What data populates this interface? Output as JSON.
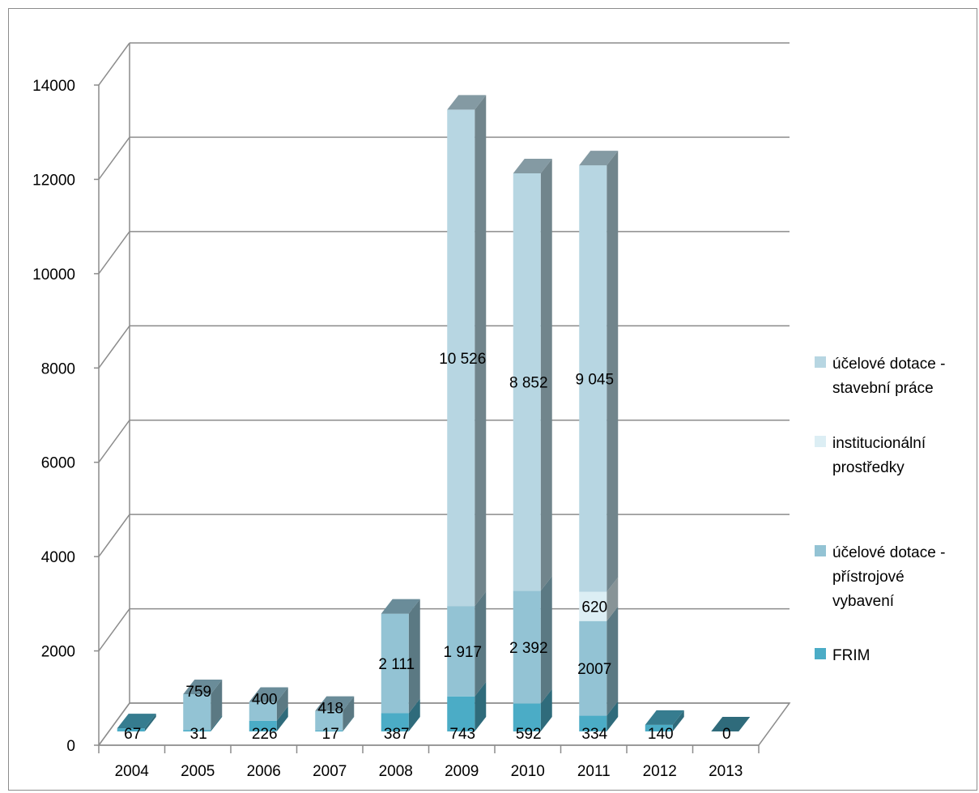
{
  "chart_data": {
    "type": "bar",
    "stacked": true,
    "three_d": true,
    "title": "",
    "xlabel": "",
    "ylabel": "",
    "ylim": [
      0,
      14000
    ],
    "y_ticks": [
      0,
      2000,
      4000,
      6000,
      8000,
      10000,
      12000,
      14000
    ],
    "grid": true,
    "legend_position": "right",
    "categories": [
      "2004",
      "2005",
      "2006",
      "2007",
      "2008",
      "2009",
      "2010",
      "2011",
      "2012",
      "2013"
    ],
    "series": [
      {
        "name": "FRIM",
        "color": "#4bacc6",
        "values": [
          67,
          31,
          226,
          17,
          387,
          743,
          592,
          334,
          140,
          0
        ],
        "labels": [
          "67",
          "31",
          "226",
          "17",
          "387",
          "743",
          "592",
          "334",
          "140",
          "0"
        ]
      },
      {
        "name": "účelové dotace - přístrojové vybavení",
        "color": "#93c3d4",
        "values": [
          0,
          759,
          400,
          418,
          2111,
          1917,
          2392,
          2007,
          0,
          0
        ],
        "labels": [
          "",
          "759",
          "400",
          "418",
          "2 111",
          "1 917",
          "2 392",
          "2007",
          "",
          ""
        ]
      },
      {
        "name": "institucionální prostředky",
        "color": "#dceef4",
        "values": [
          0,
          0,
          0,
          0,
          0,
          0,
          0,
          620,
          0,
          0
        ],
        "labels": [
          "",
          "",
          "",
          "",
          "",
          "",
          "",
          "620",
          "",
          ""
        ]
      },
      {
        "name": " účelové dotace - stavební práce",
        "color": "#b7d6e2",
        "values": [
          0,
          0,
          0,
          0,
          0,
          10526,
          8852,
          9045,
          0,
          0
        ],
        "labels": [
          "",
          "",
          "",
          "",
          "",
          "10 526",
          "8 852",
          "9 045",
          "",
          ""
        ]
      }
    ],
    "legend": [
      {
        "lines": [
          " účelové dotace -",
          "stavební práce"
        ],
        "color": "#b7d6e2"
      },
      {
        "lines": [
          "institucionální",
          "prostředky"
        ],
        "color": "#dceef4"
      },
      {
        "lines": [
          "účelové dotace -",
          "přístrojové",
          "vybavení"
        ],
        "color": "#93c3d4"
      },
      {
        "lines": [
          "FRIM"
        ],
        "color": "#4bacc6"
      }
    ]
  }
}
